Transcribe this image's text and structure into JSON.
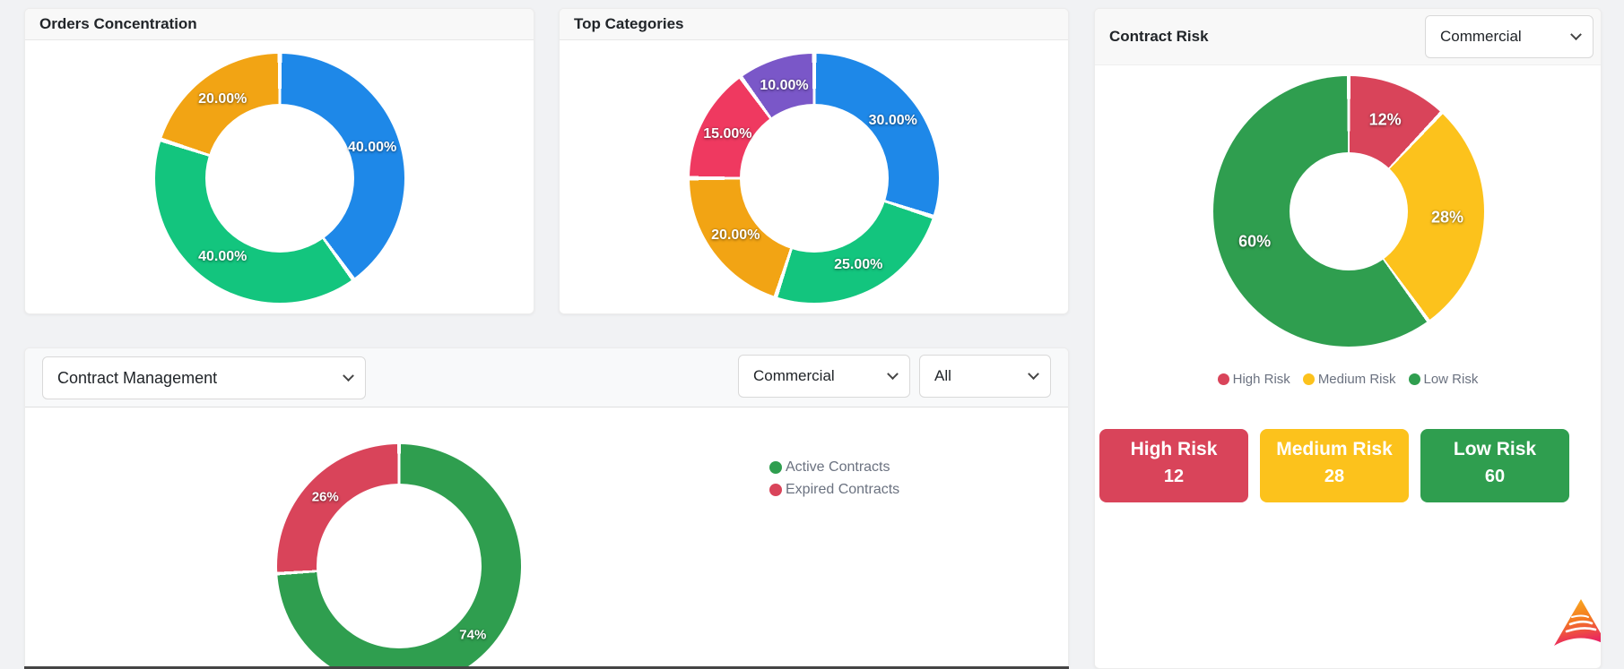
{
  "panels": {
    "orders": {
      "title": "Orders Concentration"
    },
    "categories": {
      "title": "Top Categories"
    },
    "risk": {
      "title": "Contract Risk",
      "type_select_value": "Commercial",
      "cards": [
        {
          "label": "High Risk",
          "value": "12",
          "color": "#d9445a"
        },
        {
          "label": "Medium Risk",
          "value": "28",
          "color": "#fcc21c"
        },
        {
          "label": "Low Risk",
          "value": "60",
          "color": "#2f9e4f"
        }
      ]
    },
    "management": {
      "module_select_value": "Contract Management",
      "type_select_value": "Commercial",
      "status_select_value": "All"
    }
  },
  "icons": {
    "chevron_down": "chevron-down css-shape",
    "logo": "triangle-gradient-logo"
  },
  "chart_data": [
    {
      "id": "orders_concentration",
      "type": "pie",
      "donut": true,
      "title": "Orders Concentration",
      "legend_position": "none",
      "slices": [
        {
          "label": "40.00%",
          "value": 40,
          "color": "#1e88e8"
        },
        {
          "label": "40.00%",
          "value": 40,
          "color": "#13c57e"
        },
        {
          "label": "20.00%",
          "value": 20,
          "color": "#f2a414"
        }
      ]
    },
    {
      "id": "top_categories",
      "type": "pie",
      "donut": true,
      "title": "Top Categories",
      "legend_position": "none",
      "slices": [
        {
          "label": "30.00%",
          "value": 30,
          "color": "#1e88e8"
        },
        {
          "label": "25.00%",
          "value": 25,
          "color": "#13c57e"
        },
        {
          "label": "20.00%",
          "value": 20,
          "color": "#f2a414"
        },
        {
          "label": "15.00%",
          "value": 15,
          "color": "#ef3960"
        },
        {
          "label": "10.00%",
          "value": 10,
          "color": "#7a57c8"
        }
      ]
    },
    {
      "id": "contract_risk",
      "type": "pie",
      "donut": true,
      "title": "Contract Risk",
      "legend_position": "bottom",
      "slices": [
        {
          "label": "12%",
          "value": 12,
          "color": "#d9445a"
        },
        {
          "label": "28%",
          "value": 28,
          "color": "#fcc21c"
        },
        {
          "label": "60%",
          "value": 60,
          "color": "#2f9e4f"
        }
      ],
      "legend": [
        {
          "label": "High Risk",
          "color": "#d9445a"
        },
        {
          "label": "Medium Risk",
          "color": "#fcc21c"
        },
        {
          "label": "Low Risk",
          "color": "#2f9e4f"
        }
      ]
    },
    {
      "id": "contract_management",
      "type": "pie",
      "donut": true,
      "title": "",
      "legend_position": "right",
      "slices": [
        {
          "label": "74%",
          "value": 74,
          "color": "#2f9e4f"
        },
        {
          "label": "26%",
          "value": 26,
          "color": "#d9445a"
        }
      ],
      "legend": [
        {
          "label": "Active Contracts",
          "color": "#2f9e4f"
        },
        {
          "label": "Expired Contracts",
          "color": "#d9445a"
        }
      ]
    }
  ]
}
